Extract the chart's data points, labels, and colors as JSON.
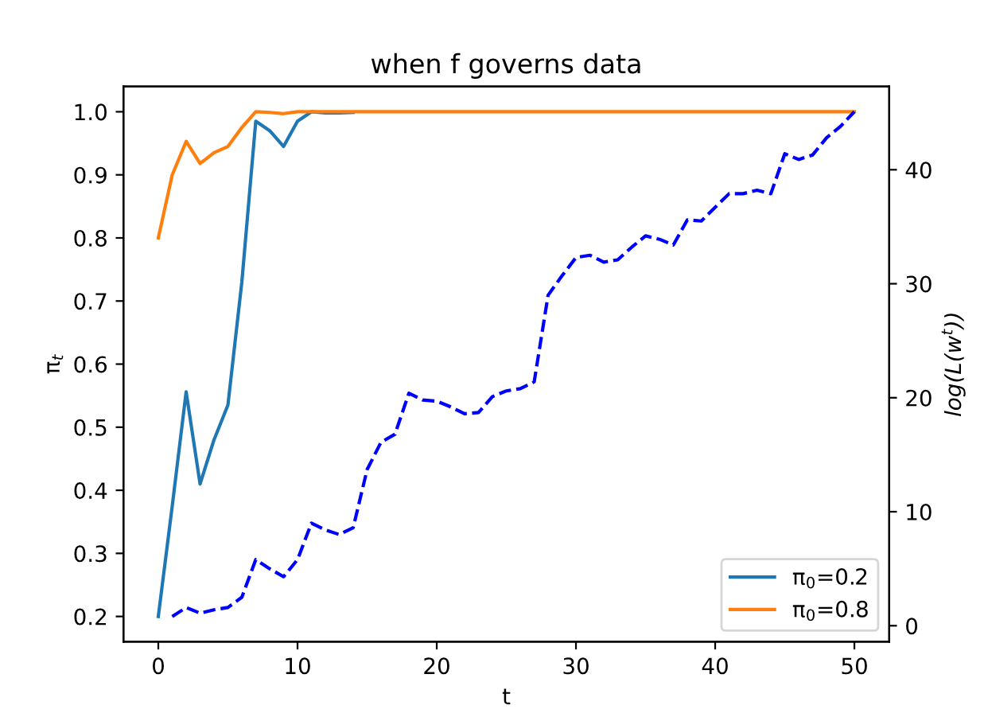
{
  "chart_data": {
    "type": "line",
    "title": "when f governs data",
    "xlabel": "t",
    "ylabel": "π$_{t}$",
    "y2label": "log(L(w$^{t}$))",
    "xlim": [
      -2.5,
      52.5
    ],
    "xticks": [
      0,
      10,
      20,
      30,
      40,
      50
    ],
    "ylim": [
      0.16,
      1.04
    ],
    "yticks": [
      {
        "value": 0.2,
        "label": "0.2"
      },
      {
        "value": 0.3,
        "label": "0.3"
      },
      {
        "value": 0.4,
        "label": "0.4"
      },
      {
        "value": 0.5,
        "label": "0.5"
      },
      {
        "value": 0.6,
        "label": "0.6"
      },
      {
        "value": 0.7,
        "label": "0.7"
      },
      {
        "value": 0.8,
        "label": "0.8"
      },
      {
        "value": 0.9,
        "label": "0.9"
      },
      {
        "value": 1.0,
        "label": "1.0"
      }
    ],
    "y2lim": [
      -1.4,
      47.3
    ],
    "y2ticks": [
      0,
      10,
      20,
      30,
      40
    ],
    "legend": "bottom right",
    "grid": false,
    "series": [
      {
        "name": "π$_{0}$=0.2",
        "color": "#1f77b4",
        "x": [
          0,
          1,
          2,
          3,
          4,
          5,
          6,
          7,
          8,
          9,
          10,
          11,
          12,
          13,
          14
        ],
        "values": [
          0.2,
          0.375,
          0.556,
          0.41,
          0.48,
          0.535,
          0.73,
          0.985,
          0.97,
          0.945,
          0.985,
          1.0,
          0.998,
          0.998,
          0.999
        ]
      },
      {
        "name": "π$_{0}$=0.8",
        "color": "#ff7f0e",
        "x": [
          0,
          1,
          2,
          3,
          4,
          5,
          6,
          7,
          8,
          9,
          10,
          11,
          20,
          30,
          40,
          50
        ],
        "values": [
          0.8,
          0.9,
          0.953,
          0.918,
          0.935,
          0.945,
          0.975,
          1.0,
          0.999,
          0.997,
          1.0,
          1.0,
          1.0,
          1.0,
          1.0,
          1.0
        ]
      },
      {
        "color": "#0000ff",
        "axis": "y2",
        "line_style": "dashed",
        "x": [
          1,
          2,
          3,
          4,
          5,
          6,
          7,
          8,
          9,
          10,
          11,
          12,
          13,
          14,
          15,
          16,
          17,
          18,
          19,
          20,
          21,
          22,
          23,
          24,
          25,
          26,
          27,
          28,
          29,
          30,
          31,
          32,
          33,
          34,
          35,
          36,
          37,
          38,
          39,
          40,
          41,
          42,
          43,
          44,
          45,
          46,
          47,
          48,
          49,
          50
        ],
        "values": [
          0.8,
          1.6,
          1.1,
          1.4,
          1.6,
          2.5,
          5.8,
          5.0,
          4.3,
          5.8,
          9.0,
          8.4,
          8.0,
          8.6,
          13.7,
          16.1,
          16.8,
          20.4,
          19.8,
          19.7,
          19.2,
          18.6,
          18.7,
          20.1,
          20.6,
          20.8,
          21.4,
          29.0,
          30.7,
          32.3,
          32.5,
          31.9,
          32.1,
          33.2,
          34.2,
          33.9,
          33.4,
          35.6,
          35.5,
          36.7,
          37.9,
          37.9,
          38.2,
          37.9,
          41.4,
          40.9,
          41.3,
          42.8,
          43.8,
          45.1
        ]
      }
    ]
  }
}
